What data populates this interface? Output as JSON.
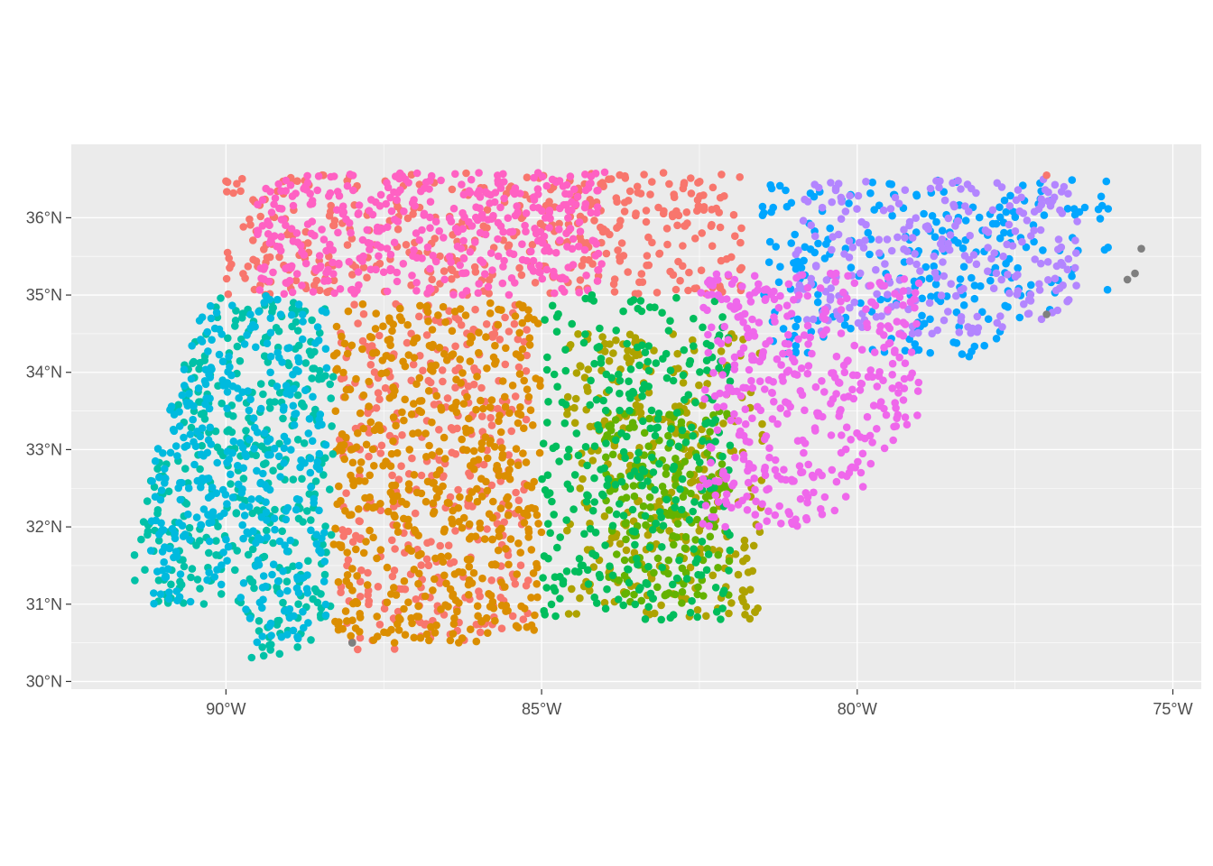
{
  "chart_data": {
    "type": "scatter",
    "title": "",
    "xlabel": "",
    "ylabel": "",
    "projection": "geographic",
    "xlim": [
      -92.45,
      -74.55
    ],
    "ylim": [
      29.9,
      36.95
    ],
    "grid": true,
    "legend": "none",
    "panel_background": "#ebebeb",
    "gridline_color": "#ffffff",
    "x_ticks": [
      {
        "value": -90,
        "label": "90°W"
      },
      {
        "value": -85,
        "label": "85°W"
      },
      {
        "value": -80,
        "label": "80°W"
      },
      {
        "value": -75,
        "label": "75°W"
      }
    ],
    "y_ticks": [
      {
        "value": 36,
        "label": "36°N"
      },
      {
        "value": 35,
        "label": "35°N"
      },
      {
        "value": 34,
        "label": "34°N"
      },
      {
        "value": 33,
        "label": "33°N"
      },
      {
        "value": 32,
        "label": "32°N"
      },
      {
        "value": 31,
        "label": "31°N"
      },
      {
        "value": 30,
        "label": "30°N"
      }
    ],
    "clusters": [
      {
        "color": "#F8766D",
        "count": 420,
        "lon": [
          -90.0,
          -81.8
        ],
        "lat": [
          35.0,
          36.6
        ]
      },
      {
        "color": "#FF61C3",
        "count": 420,
        "lon": [
          -89.5,
          -84.0
        ],
        "lat": [
          35.0,
          36.6
        ]
      },
      {
        "color": "#F8766D",
        "count": 360,
        "lon": [
          -88.2,
          -85.2
        ],
        "lat": [
          30.4,
          34.9
        ]
      },
      {
        "color": "#DB8E00",
        "count": 520,
        "lon": [
          -88.3,
          -85.0
        ],
        "lat": [
          30.5,
          34.9
        ]
      },
      {
        "color": "#AEA200",
        "count": 300,
        "lon": [
          -84.6,
          -81.5
        ],
        "lat": [
          30.8,
          34.5
        ]
      },
      {
        "color": "#64B200",
        "count": 200,
        "lon": [
          -84.0,
          -82.0
        ],
        "lat": [
          31.0,
          33.5
        ]
      },
      {
        "color": "#00BD5C",
        "count": 320,
        "lon": [
          -85.0,
          -82.0
        ],
        "lat": [
          30.8,
          35.0
        ]
      },
      {
        "color": "#00C1A7",
        "count": 380,
        "lon": [
          -91.5,
          -88.3
        ],
        "lat": [
          30.3,
          35.0
        ]
      },
      {
        "color": "#00BADE",
        "count": 380,
        "lon": [
          -91.2,
          -88.4
        ],
        "lat": [
          30.5,
          35.0
        ]
      },
      {
        "color": "#00A6FF",
        "count": 260,
        "lon": [
          -81.5,
          -76.0
        ],
        "lat": [
          34.2,
          36.5
        ]
      },
      {
        "color": "#B385FF",
        "count": 260,
        "lon": [
          -81.0,
          -76.5
        ],
        "lat": [
          34.5,
          36.5
        ]
      },
      {
        "color": "#EF67EB",
        "count": 420,
        "lon": [
          -82.5,
          -79.0
        ],
        "lat": [
          32.0,
          35.3
        ]
      }
    ],
    "outliers": [
      {
        "lon": -75.5,
        "lat": 35.6,
        "color": "#7F7F7F"
      },
      {
        "lon": -75.6,
        "lat": 35.28,
        "color": "#7F7F7F"
      },
      {
        "lon": -75.72,
        "lat": 35.2,
        "color": "#7F7F7F"
      },
      {
        "lon": -77.0,
        "lat": 34.75,
        "color": "#7F7F7F"
      },
      {
        "lon": -88.0,
        "lat": 30.5,
        "color": "#7F7F7F"
      },
      {
        "lon": -77.0,
        "lat": 36.55,
        "color": "#F8766D"
      }
    ]
  }
}
